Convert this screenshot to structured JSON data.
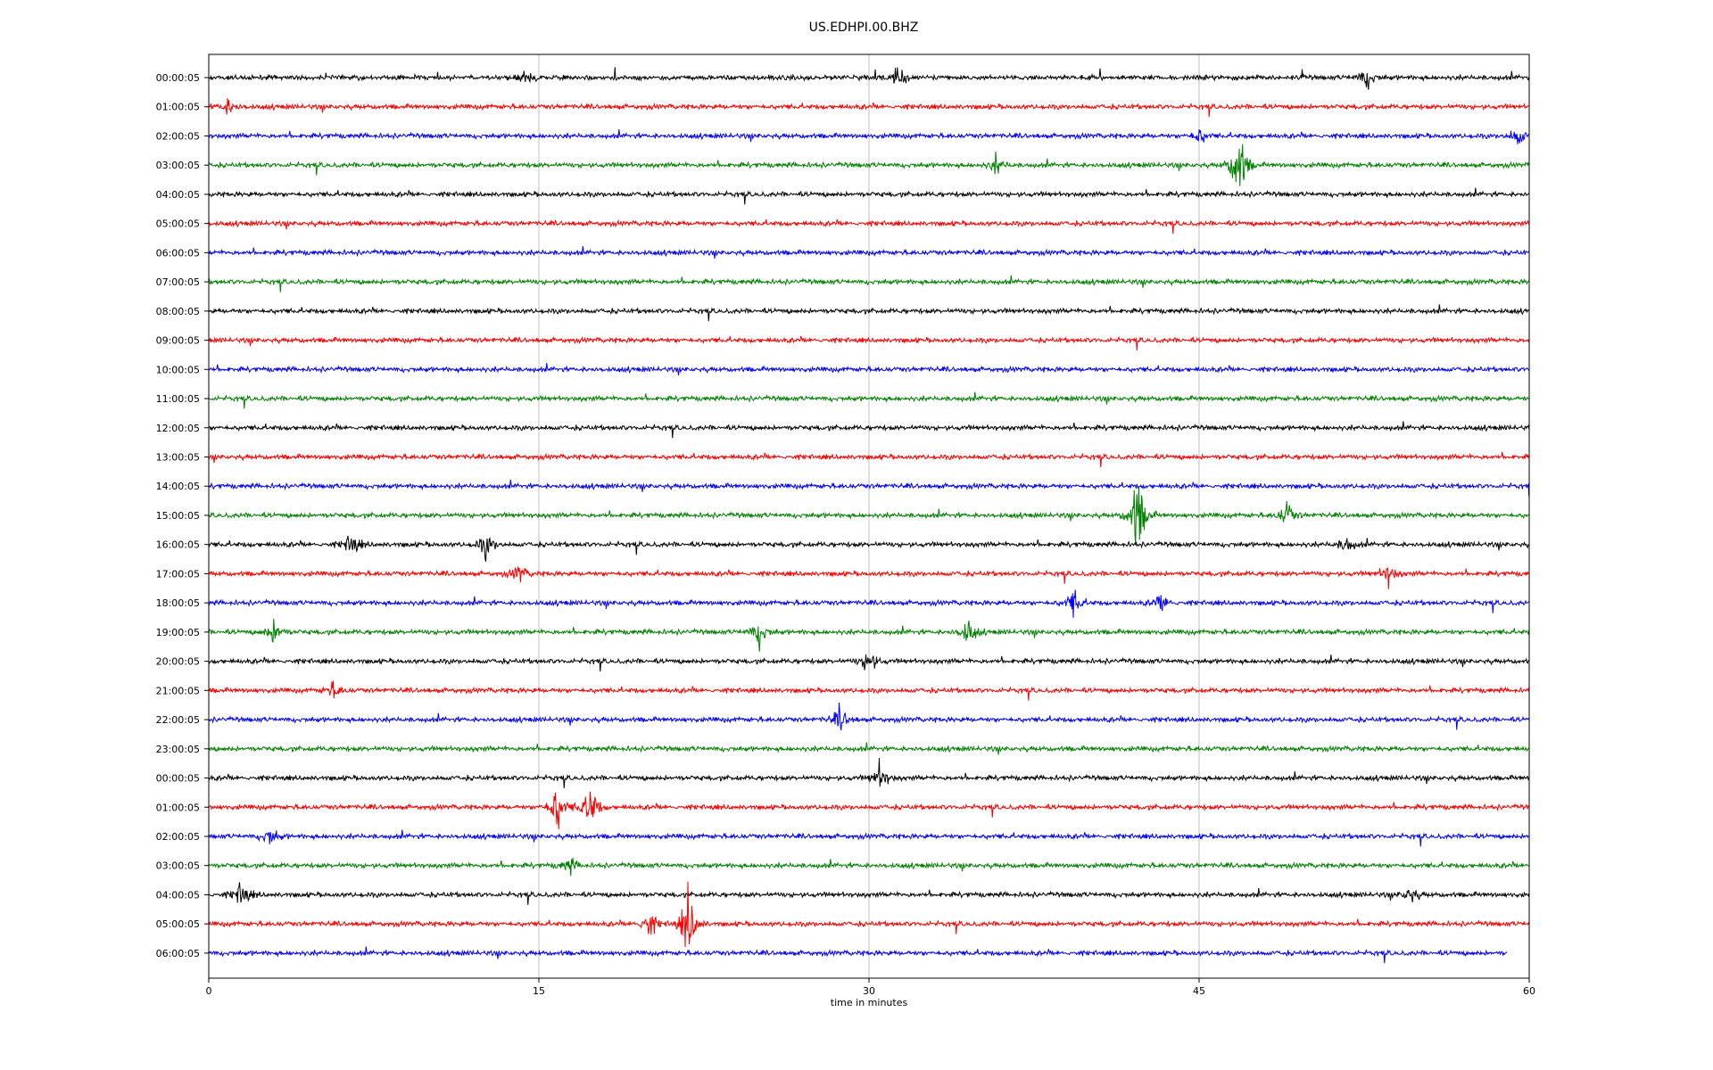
{
  "chart_data": {
    "type": "line",
    "title": "US.EDHPI.00.BHZ",
    "xlabel": "time in minutes",
    "ylabel": "",
    "xlim": [
      0,
      60
    ],
    "x_ticks": [
      0,
      15,
      30,
      45,
      60
    ],
    "grid_x": true,
    "legend": "none",
    "trace_colors": [
      "#000000",
      "#ff0000",
      "#0000ff",
      "#008000"
    ],
    "row_labels": [
      "00:00:05",
      "01:00:05",
      "02:00:05",
      "03:00:05",
      "04:00:05",
      "05:00:05",
      "06:00:05",
      "07:00:05",
      "08:00:05",
      "09:00:05",
      "10:00:05",
      "11:00:05",
      "12:00:05",
      "13:00:05",
      "14:00:05",
      "15:00:05",
      "16:00:05",
      "17:00:05",
      "18:00:05",
      "19:00:05",
      "20:00:05",
      "21:00:05",
      "22:00:05",
      "23:00:05",
      "00:00:05",
      "01:00:05",
      "02:00:05",
      "03:00:05",
      "04:00:05",
      "05:00:05",
      "06:00:05"
    ],
    "trace_end_minute": [
      60,
      60,
      60,
      60,
      60,
      60,
      60,
      60,
      60,
      60,
      60,
      60,
      60,
      60,
      60,
      60,
      60,
      60,
      60,
      60,
      60,
      60,
      60,
      60,
      60,
      60,
      60,
      60,
      60,
      60,
      59
    ],
    "events": [
      {
        "row": 0,
        "minute": 31.3,
        "amp": 0.7
      },
      {
        "row": 0,
        "minute": 14.4,
        "amp": 0.5
      },
      {
        "row": 0,
        "minute": 52.6,
        "amp": 0.6
      },
      {
        "row": 1,
        "minute": 0.9,
        "amp": 0.5
      },
      {
        "row": 2,
        "minute": 59.5,
        "amp": 0.6
      },
      {
        "row": 2,
        "minute": 45.0,
        "amp": 0.5
      },
      {
        "row": 3,
        "minute": 46.8,
        "amp": 2.4
      },
      {
        "row": 3,
        "minute": 35.8,
        "amp": 0.5
      },
      {
        "row": 15,
        "minute": 42.2,
        "amp": 2.6
      },
      {
        "row": 15,
        "minute": 49.0,
        "amp": 0.8
      },
      {
        "row": 16,
        "minute": 6.5,
        "amp": 0.7
      },
      {
        "row": 16,
        "minute": 12.6,
        "amp": 0.7
      },
      {
        "row": 16,
        "minute": 51.7,
        "amp": 0.5
      },
      {
        "row": 17,
        "minute": 14.1,
        "amp": 0.5
      },
      {
        "row": 17,
        "minute": 53.6,
        "amp": 0.6
      },
      {
        "row": 18,
        "minute": 39.3,
        "amp": 0.8
      },
      {
        "row": 18,
        "minute": 43.3,
        "amp": 0.6
      },
      {
        "row": 19,
        "minute": 3.0,
        "amp": 0.8
      },
      {
        "row": 19,
        "minute": 25.0,
        "amp": 0.8
      },
      {
        "row": 19,
        "minute": 34.5,
        "amp": 0.8
      },
      {
        "row": 20,
        "minute": 30.0,
        "amp": 0.8
      },
      {
        "row": 21,
        "minute": 5.7,
        "amp": 0.5
      },
      {
        "row": 22,
        "minute": 28.7,
        "amp": 0.7
      },
      {
        "row": 24,
        "minute": 30.5,
        "amp": 0.8
      },
      {
        "row": 25,
        "minute": 15.8,
        "amp": 1.5
      },
      {
        "row": 25,
        "minute": 17.3,
        "amp": 1.7
      },
      {
        "row": 26,
        "minute": 2.8,
        "amp": 0.5
      },
      {
        "row": 27,
        "minute": 16.4,
        "amp": 0.5
      },
      {
        "row": 28,
        "minute": 1.5,
        "amp": 0.8
      },
      {
        "row": 28,
        "minute": 54.6,
        "amp": 0.5
      },
      {
        "row": 29,
        "minute": 21.8,
        "amp": 2.0
      },
      {
        "row": 29,
        "minute": 20.0,
        "amp": 0.9
      }
    ]
  }
}
